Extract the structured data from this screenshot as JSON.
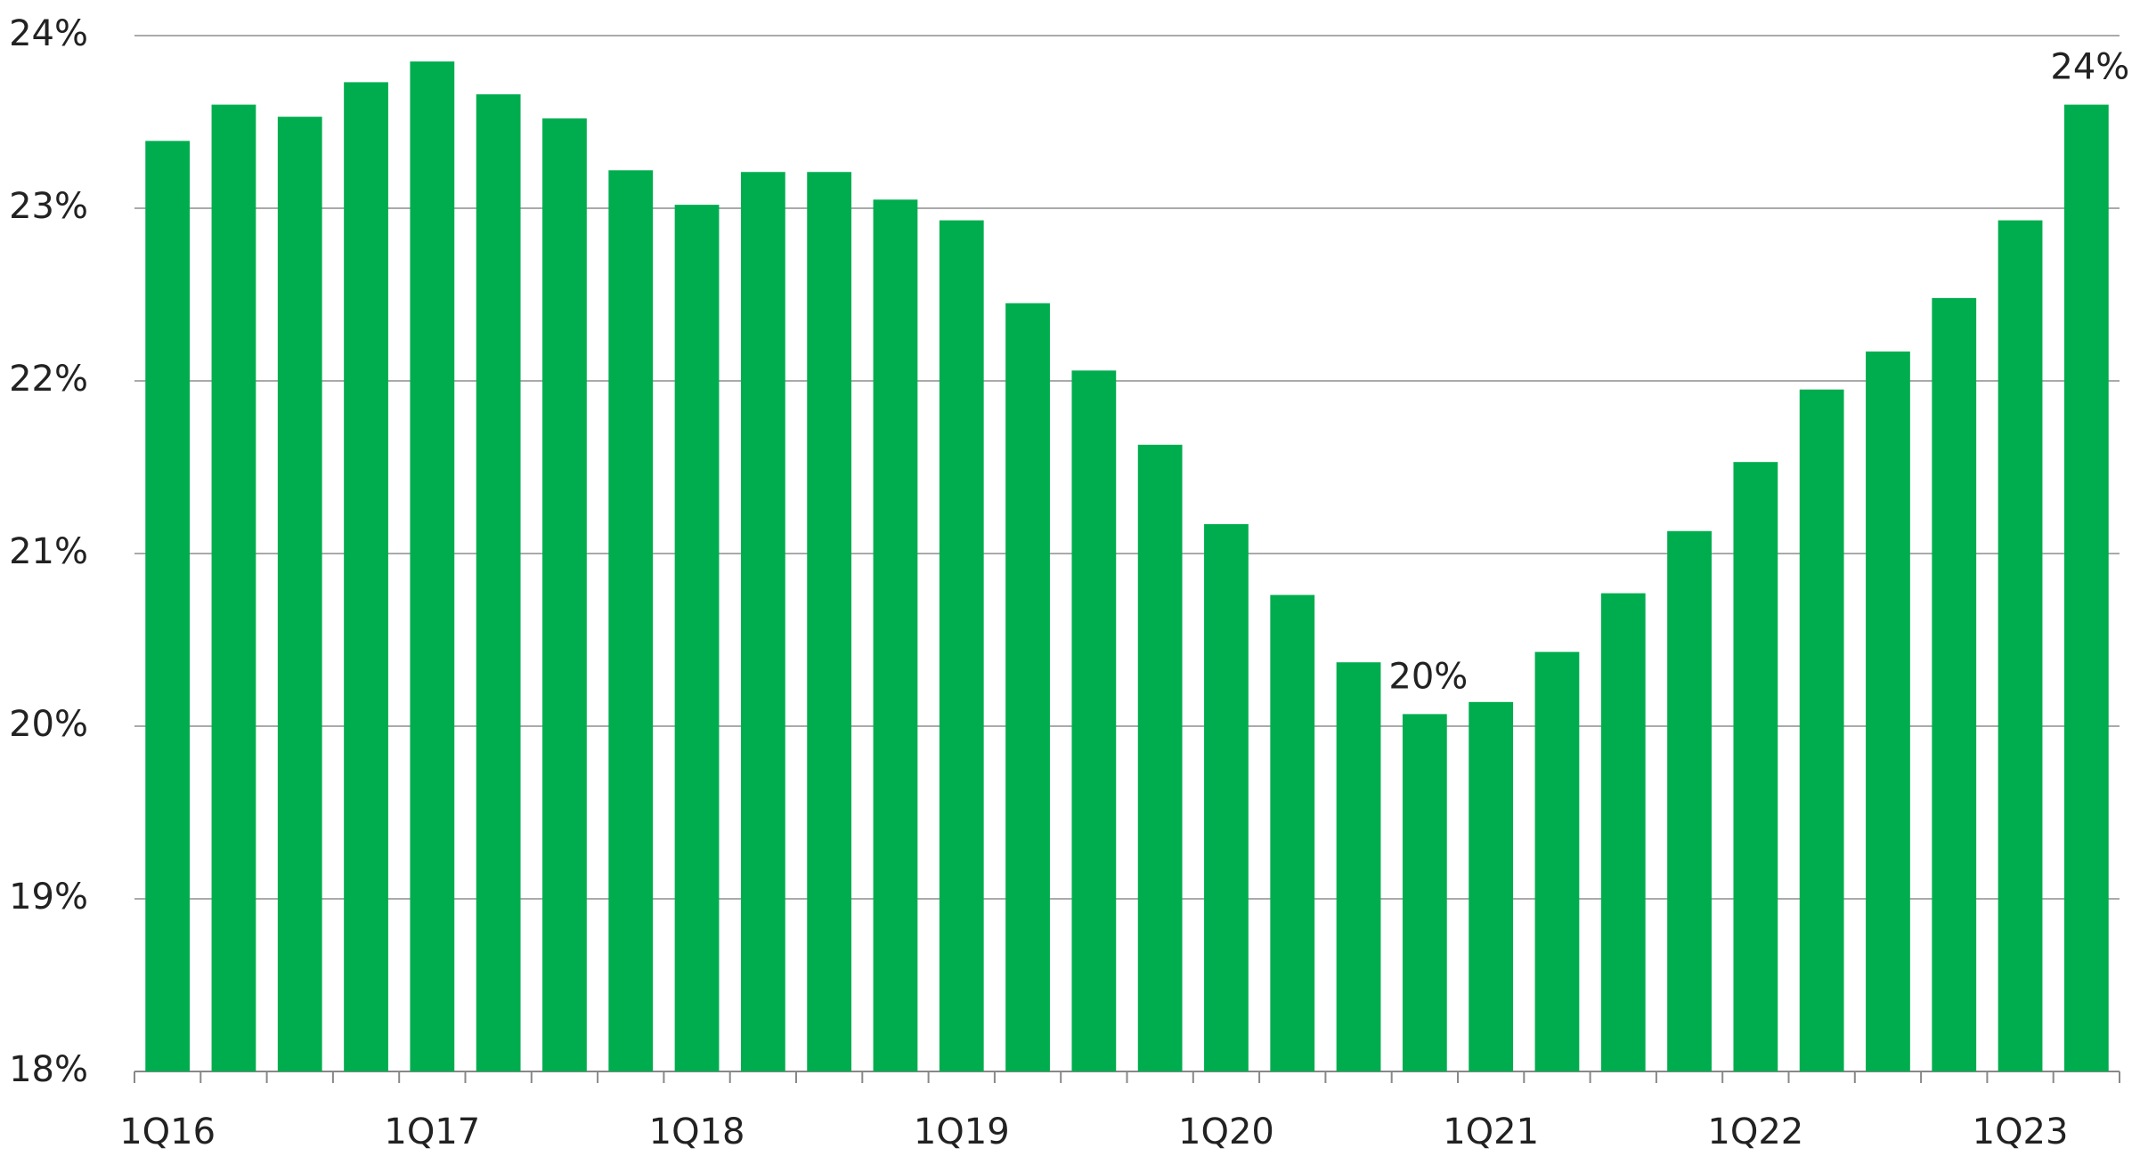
{
  "chart_data": {
    "type": "bar",
    "categories": [
      "1Q16",
      null,
      null,
      null,
      "1Q17",
      null,
      null,
      null,
      "1Q18",
      null,
      null,
      null,
      "1Q19",
      null,
      null,
      null,
      "1Q20",
      null,
      null,
      null,
      "1Q21",
      null,
      null,
      null,
      "1Q22",
      null,
      null,
      null,
      "1Q23",
      null
    ],
    "values": [
      23.39,
      23.6,
      23.53,
      23.73,
      23.85,
      23.66,
      23.52,
      23.22,
      23.02,
      23.21,
      23.21,
      23.05,
      22.93,
      22.45,
      22.06,
      21.63,
      21.17,
      20.76,
      20.37,
      20.07,
      20.14,
      20.43,
      20.77,
      21.13,
      21.53,
      21.95,
      22.17,
      22.48,
      22.93,
      23.6
    ],
    "value_labels": [
      null,
      null,
      null,
      null,
      null,
      null,
      null,
      null,
      null,
      null,
      null,
      null,
      null,
      null,
      null,
      null,
      null,
      null,
      null,
      "20%",
      null,
      null,
      null,
      null,
      null,
      null,
      null,
      null,
      null,
      "24%"
    ],
    "color": "#00ad4e",
    "ylim": [
      18,
      24
    ],
    "yticks": [
      {
        "value": 18,
        "label": "18%"
      },
      {
        "value": 19,
        "label": "19%"
      },
      {
        "value": 20,
        "label": "20%"
      },
      {
        "value": 21,
        "label": "21%"
      },
      {
        "value": 22,
        "label": "22%"
      },
      {
        "value": 23,
        "label": "23%"
      },
      {
        "value": 24,
        "label": "24%"
      }
    ],
    "grid": true
  }
}
